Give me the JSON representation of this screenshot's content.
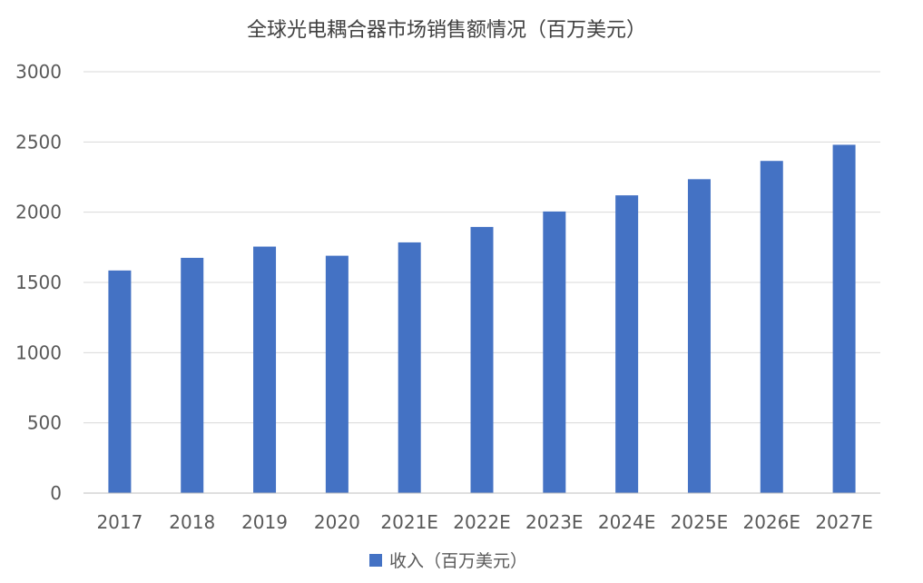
{
  "chart_data": {
    "type": "bar",
    "title": "全球光电耦合器市场销售额情况（百万美元）",
    "categories": [
      "2017",
      "2018",
      "2019",
      "2020",
      "2021E",
      "2022E",
      "2023E",
      "2024E",
      "2025E",
      "2026E",
      "2027E"
    ],
    "series": [
      {
        "name": "收入（百万美元）",
        "values": [
          1585,
          1675,
          1755,
          1690,
          1785,
          1895,
          2005,
          2120,
          2235,
          2365,
          2480
        ],
        "color": "#4472c4"
      }
    ],
    "ylim": [
      0,
      3000
    ],
    "yticks": [
      0,
      500,
      1000,
      1500,
      2000,
      2500,
      3000
    ],
    "grid": true,
    "legend": "bottom"
  }
}
